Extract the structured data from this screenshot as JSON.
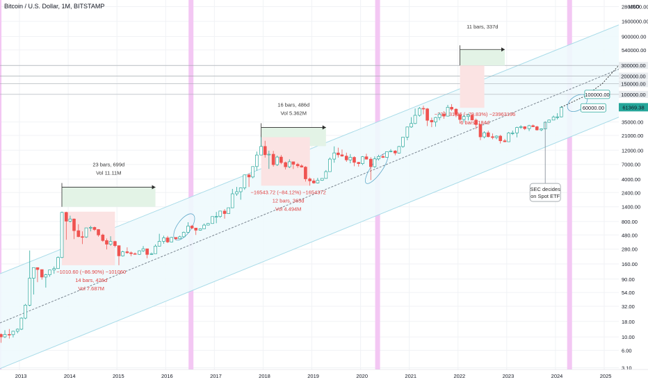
{
  "header": {
    "title": "Bitcoin / U.S. Dollar, 1M, BITSTAMP"
  },
  "colors": {
    "up": "#26a69a",
    "down": "#ef5350",
    "highlight_band": "#f3c7f3",
    "channel_line": "#a8dbe8",
    "channel_fill": "#eef9fd",
    "measure_green_fill": "#e3f3e6",
    "measure_red_fill": "#fbe3e3",
    "measure_text_red": "#e04040",
    "price_badge": "#26a69a"
  },
  "chart_data": {
    "type": "candlestick",
    "title": "Bitcoin / U.S. Dollar, 1M, BITSTAMP",
    "y_scale": "log",
    "y_unit": "USD",
    "x_range": [
      2012.6,
      2025.3
    ],
    "y_range": [
      2.9,
      3600000
    ],
    "x_ticks": [
      "2013",
      "2014",
      "2015",
      "2016",
      "2017",
      "2018",
      "2019",
      "2020",
      "2021",
      "2022",
      "2023",
      "2024",
      "2025"
    ],
    "y_ticks": [
      {
        "value": 3.1,
        "label": "3.10"
      },
      {
        "value": 6,
        "label": "6.00"
      },
      {
        "value": 10,
        "label": "10.00"
      },
      {
        "value": 18,
        "label": "18.00"
      },
      {
        "value": 32,
        "label": "32.00"
      },
      {
        "value": 54,
        "label": "54.00"
      },
      {
        "value": 90,
        "label": "90.00"
      },
      {
        "value": 160,
        "label": "160.00"
      },
      {
        "value": 280,
        "label": "280.00"
      },
      {
        "value": 480,
        "label": "480.00"
      },
      {
        "value": 800,
        "label": "800.00"
      },
      {
        "value": 1400,
        "label": "1400.00"
      },
      {
        "value": 2400,
        "label": "2400.00"
      },
      {
        "value": 4000,
        "label": "4000.00"
      },
      {
        "value": 7000,
        "label": "7000.00"
      },
      {
        "value": 12000,
        "label": "12000.00"
      },
      {
        "value": 21000,
        "label": "21000.00"
      },
      {
        "value": 35000,
        "label": "35000.00"
      },
      {
        "value": 100000,
        "label": "100000.00"
      },
      {
        "value": 150000,
        "label": "150000.00"
      },
      {
        "value": 200000,
        "label": "200000.00"
      },
      {
        "value": 300000,
        "label": "300000.00"
      },
      {
        "value": 540000,
        "label": "540000.00"
      },
      {
        "value": 900000,
        "label": "900000.00"
      },
      {
        "value": 1600000,
        "label": "1600000.00"
      },
      {
        "value": 2800000,
        "label": "2800000.00"
      }
    ],
    "last_price": {
      "value": 61369.38,
      "label": "61369.38"
    },
    "price_labels": [
      {
        "value": 100000,
        "label": "100000.00"
      },
      {
        "value": 60000,
        "label": "60000.00"
      }
    ],
    "highlight_dates": [
      2012.58,
      2016.52,
      2020.35,
      2024.29
    ],
    "grid": true,
    "channel": {
      "upper": [
        [
          2012.6,
          110
        ],
        [
          2025.3,
          1400000
        ]
      ],
      "middle": [
        [
          2012.6,
          17
        ],
        [
          2025.3,
          260000
        ]
      ],
      "lower": [
        [
          2012.6,
          3
        ],
        [
          2025.3,
          42000
        ]
      ]
    },
    "candles": [
      [
        2012.62,
        11,
        11.5,
        8,
        10
      ],
      [
        2012.7,
        10,
        12.9,
        9.6,
        11
      ],
      [
        2012.79,
        11,
        13.5,
        9.4,
        10.9
      ],
      [
        2012.87,
        10.9,
        12.6,
        9.8,
        12.4
      ],
      [
        2012.96,
        12.4,
        13.8,
        11.5,
        13.4
      ],
      [
        2013.04,
        13.4,
        21,
        13,
        20.4
      ],
      [
        2013.12,
        20.4,
        35,
        19.6,
        33.4
      ],
      [
        2013.21,
        33.4,
        266,
        32,
        93
      ],
      [
        2013.29,
        93,
        139,
        50,
        139
      ],
      [
        2013.37,
        139,
        140,
        80,
        129
      ],
      [
        2013.46,
        129,
        129,
        88,
        97
      ],
      [
        2013.54,
        97,
        110,
        65,
        106
      ],
      [
        2013.62,
        106,
        128,
        98,
        127
      ],
      [
        2013.71,
        127,
        145,
        110,
        134
      ],
      [
        2013.79,
        134,
        212,
        133,
        204
      ],
      [
        2013.87,
        204,
        1163,
        199,
        1130
      ],
      [
        2013.96,
        1130,
        1160,
        400,
        810
      ],
      [
        2014.04,
        810,
        1000,
        770,
        880
      ],
      [
        2014.12,
        880,
        900,
        410,
        565
      ],
      [
        2014.21,
        565,
        720,
        440,
        450
      ],
      [
        2014.29,
        450,
        550,
        340,
        445
      ],
      [
        2014.37,
        445,
        630,
        430,
        628
      ],
      [
        2014.46,
        628,
        680,
        550,
        640
      ],
      [
        2014.54,
        640,
        660,
        560,
        590
      ],
      [
        2014.62,
        590,
        600,
        450,
        480
      ],
      [
        2014.71,
        480,
        505,
        370,
        388
      ],
      [
        2014.79,
        388,
        420,
        277,
        338
      ],
      [
        2014.87,
        338,
        458,
        318,
        375
      ],
      [
        2014.96,
        375,
        385,
        300,
        320
      ],
      [
        2015.04,
        320,
        320,
        152,
        217
      ],
      [
        2015.12,
        217,
        264,
        212,
        254
      ],
      [
        2015.21,
        254,
        300,
        235,
        244
      ],
      [
        2015.29,
        244,
        256,
        214,
        236
      ],
      [
        2015.37,
        236,
        247,
        228,
        230
      ],
      [
        2015.46,
        230,
        267,
        226,
        263
      ],
      [
        2015.54,
        263,
        315,
        252,
        284
      ],
      [
        2015.62,
        284,
        285,
        198,
        229
      ],
      [
        2015.71,
        229,
        245,
        225,
        236
      ],
      [
        2015.79,
        236,
        335,
        235,
        314
      ],
      [
        2015.87,
        314,
        502,
        311,
        377
      ],
      [
        2015.96,
        377,
        466,
        345,
        430
      ],
      [
        2016.04,
        430,
        462,
        352,
        368
      ],
      [
        2016.12,
        368,
        445,
        366,
        437
      ],
      [
        2016.21,
        437,
        439,
        395,
        416
      ],
      [
        2016.29,
        416,
        467,
        412,
        448
      ],
      [
        2016.37,
        448,
        545,
        440,
        531
      ],
      [
        2016.46,
        531,
        778,
        520,
        673
      ],
      [
        2016.54,
        673,
        704,
        600,
        624
      ],
      [
        2016.62,
        624,
        625,
        480,
        575
      ],
      [
        2016.71,
        575,
        620,
        565,
        608
      ],
      [
        2016.79,
        608,
        740,
        605,
        698
      ],
      [
        2016.87,
        698,
        755,
        690,
        742
      ],
      [
        2016.96,
        742,
        970,
        735,
        966
      ],
      [
        2017.04,
        966,
        1150,
        750,
        968
      ],
      [
        2017.12,
        968,
        1200,
        920,
        1190
      ],
      [
        2017.21,
        1190,
        1280,
        890,
        1080
      ],
      [
        2017.29,
        1080,
        1350,
        1070,
        1348
      ],
      [
        2017.37,
        1348,
        2760,
        1340,
        2290
      ],
      [
        2017.46,
        2290,
        2980,
        2120,
        2480
      ],
      [
        2017.54,
        2480,
        2920,
        1830,
        2870
      ],
      [
        2017.62,
        2870,
        4760,
        2670,
        4700
      ],
      [
        2017.71,
        4700,
        4990,
        2970,
        4340
      ],
      [
        2017.79,
        4340,
        6450,
        4130,
        6450
      ],
      [
        2017.87,
        6450,
        11400,
        5520,
        10000
      ],
      [
        2017.96,
        10000,
        19666,
        10000,
        13850
      ],
      [
        2018.04,
        13850,
        17150,
        9050,
        10100
      ],
      [
        2018.12,
        10100,
        11780,
        5900,
        10300
      ],
      [
        2018.21,
        10300,
        11680,
        6430,
        6930
      ],
      [
        2018.29,
        6930,
        9750,
        6580,
        9250
      ],
      [
        2018.37,
        9250,
        9990,
        7050,
        7500
      ],
      [
        2018.46,
        7500,
        7780,
        5770,
        6390
      ],
      [
        2018.54,
        6390,
        8500,
        6080,
        7730
      ],
      [
        2018.62,
        7730,
        7740,
        5880,
        7020
      ],
      [
        2018.71,
        7020,
        7420,
        6140,
        6630
      ],
      [
        2018.79,
        6630,
        7020,
        6200,
        6320
      ],
      [
        2018.87,
        6320,
        6550,
        3650,
        4040
      ],
      [
        2018.96,
        4040,
        4250,
        3120,
        3740
      ],
      [
        2019.04,
        3740,
        4110,
        3350,
        3460
      ],
      [
        2019.12,
        3460,
        4200,
        3400,
        3820
      ],
      [
        2019.21,
        3820,
        4150,
        3750,
        4110
      ],
      [
        2019.29,
        4110,
        5640,
        4090,
        5320
      ],
      [
        2019.37,
        5320,
        9090,
        5300,
        8560
      ],
      [
        2019.46,
        8560,
        13880,
        7460,
        10820
      ],
      [
        2019.54,
        10820,
        13200,
        9070,
        10080
      ],
      [
        2019.62,
        10080,
        12320,
        9360,
        9590
      ],
      [
        2019.71,
        9590,
        10920,
        7710,
        8300
      ],
      [
        2019.79,
        8300,
        10360,
        7300,
        9150
      ],
      [
        2019.87,
        9150,
        9520,
        6520,
        7560
      ],
      [
        2019.96,
        7560,
        7700,
        6430,
        7200
      ],
      [
        2020.04,
        7200,
        9580,
        6850,
        9350
      ],
      [
        2020.12,
        9350,
        10500,
        8440,
        8540
      ],
      [
        2020.21,
        8540,
        9190,
        3860,
        6410
      ],
      [
        2020.29,
        6410,
        9470,
        6150,
        8630
      ],
      [
        2020.37,
        8630,
        10080,
        8120,
        9450
      ],
      [
        2020.46,
        9450,
        10380,
        8910,
        9140
      ],
      [
        2020.54,
        9140,
        11440,
        9000,
        11350
      ],
      [
        2020.62,
        11350,
        12480,
        11140,
        11650
      ],
      [
        2020.71,
        11650,
        12050,
        9880,
        10780
      ],
      [
        2020.79,
        10780,
        14100,
        10560,
        13800
      ],
      [
        2020.87,
        13800,
        19860,
        13200,
        19700
      ],
      [
        2020.96,
        19700,
        29300,
        17570,
        28990
      ],
      [
        2021.04,
        28990,
        41950,
        28130,
        33100
      ],
      [
        2021.12,
        33100,
        58350,
        32300,
        45140
      ],
      [
        2021.21,
        45140,
        61780,
        43000,
        58800
      ],
      [
        2021.29,
        58800,
        64900,
        47000,
        57720
      ],
      [
        2021.37,
        57720,
        59500,
        30000,
        37300
      ],
      [
        2021.46,
        37300,
        41330,
        28800,
        35040
      ],
      [
        2021.54,
        35040,
        42410,
        29280,
        41500
      ],
      [
        2021.62,
        41500,
        50500,
        37330,
        47100
      ],
      [
        2021.71,
        47100,
        52920,
        39600,
        43800
      ],
      [
        2021.79,
        43800,
        67000,
        43280,
        61310
      ],
      [
        2021.87,
        61310,
        69000,
        53250,
        57000
      ],
      [
        2021.96,
        57000,
        59000,
        42000,
        46200
      ],
      [
        2022.04,
        46200,
        47990,
        32950,
        38480
      ],
      [
        2022.12,
        38480,
        45820,
        34330,
        43180
      ],
      [
        2022.21,
        43180,
        48190,
        37150,
        45530
      ],
      [
        2022.29,
        45530,
        47440,
        37500,
        37640
      ],
      [
        2022.37,
        37640,
        40000,
        26700,
        31800
      ],
      [
        2022.46,
        31800,
        31990,
        17600,
        19920
      ],
      [
        2022.54,
        19920,
        24650,
        18780,
        23300
      ],
      [
        2022.62,
        23300,
        25200,
        19540,
        20050
      ],
      [
        2022.71,
        20050,
        22700,
        18150,
        19420
      ],
      [
        2022.79,
        19420,
        21100,
        18200,
        20490
      ],
      [
        2022.87,
        20490,
        21470,
        15480,
        17160
      ],
      [
        2022.96,
        17160,
        18400,
        16260,
        16540
      ],
      [
        2023.04,
        16540,
        23950,
        16500,
        23120
      ],
      [
        2023.12,
        23120,
        25240,
        21400,
        23150
      ],
      [
        2023.21,
        23150,
        29190,
        19550,
        28460
      ],
      [
        2023.29,
        28460,
        31000,
        26940,
        29250
      ],
      [
        2023.37,
        29250,
        29820,
        25820,
        27210
      ],
      [
        2023.46,
        27210,
        31440,
        24800,
        30470
      ],
      [
        2023.54,
        30470,
        31800,
        28860,
        29230
      ],
      [
        2023.62,
        29230,
        30200,
        25300,
        25930
      ],
      [
        2023.71,
        25930,
        27490,
        24900,
        26960
      ],
      [
        2023.79,
        26960,
        35200,
        26540,
        34650
      ],
      [
        2023.87,
        34650,
        38410,
        34100,
        37720
      ],
      [
        2023.96,
        37720,
        44700,
        37600,
        42280
      ],
      [
        2024.04,
        42280,
        48970,
        38550,
        42580
      ],
      [
        2024.12,
        42580,
        64000,
        41900,
        61370
      ]
    ]
  },
  "measures": [
    {
      "id": "cycle1",
      "green": {
        "x1": 2013.87,
        "x2": 2015.79,
        "top": 1400,
        "bottom": 2950
      },
      "red": {
        "x1": 2013.87,
        "x2": 2014.96,
        "top": 1163,
        "bottom": 152
      },
      "duration_label": "23 bars, 699d",
      "vol_label": "Vol 11.11M",
      "change_label": "−1010.60 (−86.90%) −101060",
      "bars_label": "14 bars, 426d",
      "vol2_label": "Vol 7.687M"
    },
    {
      "id": "cycle2",
      "green": {
        "x1": 2017.96,
        "x2": 2019.29,
        "top": 14000,
        "bottom": 28500
      },
      "red": {
        "x1": 2017.96,
        "x2": 2018.96,
        "top": 19666,
        "bottom": 3120
      },
      "duration_label": "16 bars, 486d",
      "vol_label": "Vol 5.362M",
      "change_label": "−16543.72 (−84.12%) −1654372",
      "bars_label": "12 bars, 365d",
      "vol2_label": "Vol 4.494M"
    },
    {
      "id": "cycle3",
      "green": {
        "x1": 2022.04,
        "x2": 2022.96,
        "top": 300000,
        "bottom": 550000
      },
      "red": {
        "x1": 2022.04,
        "x2": 2022.54,
        "top": 300000,
        "bottom": 60000
      },
      "duration_label": "11 bars, 337d",
      "change_label": "−239631.96 (−79.83%) −23963196",
      "bars_label": "6 bars, 184d"
    }
  ],
  "horizontal_levels": [
    300000,
    200000,
    150000,
    100000
  ],
  "sec_callout": {
    "line1": "SEC decides",
    "line2": "on Spot ETF"
  },
  "projection": [
    [
      2024.12,
      61370
    ],
    [
      2024.62,
      95000
    ],
    [
      2024.96,
      150000
    ],
    [
      2025.3,
      300000
    ]
  ],
  "projection_down": [
    [
      2025.3,
      300000
    ],
    [
      2025.3,
      60000
    ]
  ]
}
